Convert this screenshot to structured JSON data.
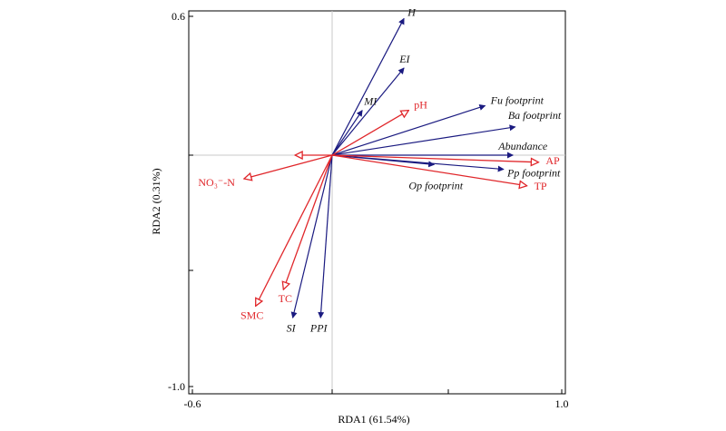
{
  "chart_data": {
    "type": "biplot",
    "xlabel": "RDA1 (61.54%)",
    "ylabel": "RDA2 (0.31%)",
    "xlim": [
      -0.6,
      1.0
    ],
    "ylim": [
      -1.0,
      0.6
    ],
    "xticks": [
      "-0.6",
      "1.0"
    ],
    "yticks": [
      "0.6",
      "-1.0"
    ],
    "colors": {
      "response": "#1a1a80",
      "explanatory": "#e0262a",
      "axes": "#000000",
      "zero_line": "#c8c8c8"
    },
    "series": [
      {
        "name": "",
        "arrow": "filled",
        "color": "#1a1a80",
        "vectors": [
          {
            "label": "H",
            "x": 0.31,
            "y": 0.58
          },
          {
            "label": "EI",
            "x": 0.31,
            "y": 0.37
          },
          {
            "label": "MI",
            "x": 0.13,
            "y": 0.19
          },
          {
            "label": "Fu footprint",
            "x": 0.66,
            "y": 0.21
          },
          {
            "label": "Ba footprint",
            "x": 0.79,
            "y": 0.12
          },
          {
            "label": "Abundance",
            "x": 0.78,
            "y": 0.0
          },
          {
            "label": "Op footprint",
            "x": 0.44,
            "y": -0.04
          },
          {
            "label": "Pp footprint",
            "x": 0.74,
            "y": -0.06
          },
          {
            "label": "SI",
            "x": -0.17,
            "y": -0.69
          },
          {
            "label": "PPI",
            "x": -0.05,
            "y": -0.69
          }
        ]
      },
      {
        "name": "",
        "arrow": "open",
        "color": "#e0262a",
        "vectors": [
          {
            "label": "pH",
            "x": 0.33,
            "y": 0.19
          },
          {
            "label": "AP",
            "x": 0.89,
            "y": -0.03
          },
          {
            "label": "TP",
            "x": 0.84,
            "y": -0.13
          },
          {
            "label": "NO₃⁻-N",
            "x": -0.38,
            "y": -0.1
          },
          {
            "label": "TC",
            "x": -0.21,
            "y": -0.57
          },
          {
            "label": "SMC",
            "x": -0.33,
            "y": -0.64
          },
          {
            "label": "",
            "x": -0.16,
            "y": 0.0
          }
        ]
      }
    ]
  }
}
